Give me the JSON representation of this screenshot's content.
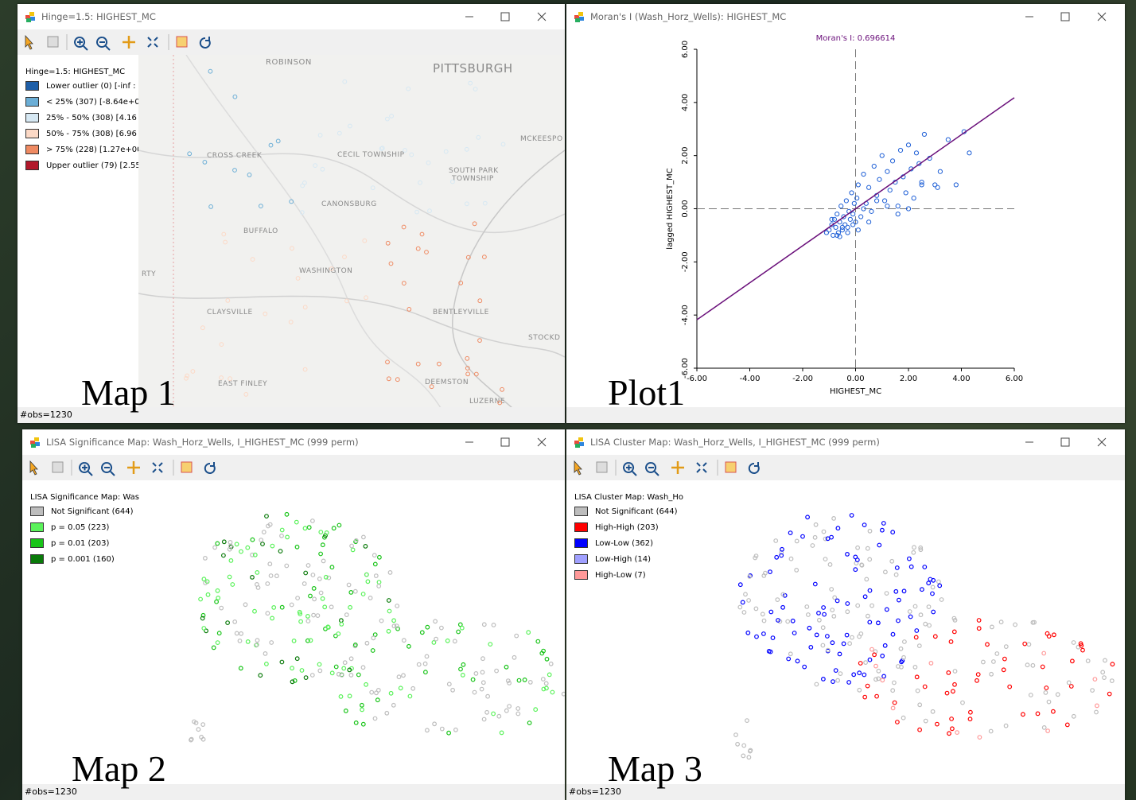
{
  "windows": [
    {
      "title": "Hinge=1.5: HIGHEST_MC",
      "legend": {
        "title": "Hinge=1.5: HIGHEST_MC",
        "items": [
          {
            "label": "Lower outlier (0)  [-inf :",
            "color": "#1f5fa8"
          },
          {
            "label": "< 25% (307)  [-8.64e+0",
            "color": "#6baed6"
          },
          {
            "label": "25% - 50% (308)  [4.16",
            "color": "#d6e8f3"
          },
          {
            "label": "50% - 75% (308)  [6.96",
            "color": "#fcd9c6"
          },
          {
            "label": "> 75% (228)  [1.27e+00",
            "color": "#ef8a62"
          },
          {
            "label": "Upper outlier (79)  [2.55",
            "color": "#b2182b"
          }
        ]
      },
      "map_labels": [
        "ROBINSON",
        "PITTSBURGH",
        "MCKEESPO",
        "CROSS CREEK",
        "CECIL TOWNSHIP",
        "SOUTH PARK",
        "TOWNSHIP",
        "CANONSBURG",
        "BUFFALO",
        "WASHINGTON",
        "RTY",
        "CLAYSVILLE",
        "BENTLEYVILLE",
        "STOCKD",
        "EAST FINLEY",
        "DEEMSTON",
        "LUZERNE"
      ],
      "status": "#obs=1230",
      "caption": "Map 1"
    },
    {
      "title": "Moran's I (Wash_Horz_Wells): HIGHEST_MC",
      "plot": {
        "type": "scatter",
        "title": "Moran's I: 0.696614",
        "slope": 0.696614,
        "color": "#1e5fd6",
        "line_color": "#6a0f7a",
        "x_label": "HIGHEST_MC",
        "y_label": "lagged HIGHEST_MC",
        "xlim": [
          -6,
          6
        ],
        "ylim": [
          -6,
          6
        ],
        "xticks": [
          {
            "value": -6,
            "label": "-6.00"
          },
          {
            "value": -4,
            "label": "-4.00"
          },
          {
            "value": -2,
            "label": "-2.00"
          },
          {
            "value": 0,
            "label": "0.00"
          },
          {
            "value": 2,
            "label": "2.00"
          },
          {
            "value": 4,
            "label": "4.00"
          },
          {
            "value": 6,
            "label": "6.00"
          }
        ],
        "yticks": [
          {
            "value": -6,
            "label": "-6.00"
          },
          {
            "value": -4,
            "label": "-4.00"
          },
          {
            "value": -2,
            "label": "-2.00"
          },
          {
            "value": 0,
            "label": "0.00"
          },
          {
            "value": 2,
            "label": "2.00"
          },
          {
            "value": 4,
            "label": "4.00"
          },
          {
            "value": 6,
            "label": "6.00"
          }
        ],
        "x": [
          -1.1,
          -1.0,
          -0.9,
          -0.85,
          -0.8,
          -0.75,
          -0.7,
          -0.65,
          -0.6,
          -0.55,
          -0.5,
          -0.45,
          -0.4,
          -0.35,
          -0.3,
          -0.25,
          -0.2,
          -0.15,
          -0.1,
          -0.05,
          0,
          0.05,
          0.1,
          0.2,
          0.3,
          0.4,
          0.5,
          0.6,
          0.7,
          0.8,
          0.9,
          1.0,
          1.1,
          1.2,
          1.3,
          1.4,
          1.5,
          1.6,
          1.7,
          1.8,
          1.9,
          2.0,
          2.1,
          2.2,
          2.3,
          2.4,
          2.5,
          2.6,
          2.8,
          3.0,
          3.2,
          3.5,
          3.8,
          4.1,
          4.3,
          -0.9,
          -0.7,
          -0.5,
          -0.3,
          -0.1,
          0.1,
          0.3,
          0.5,
          0.8,
          1.2,
          1.6,
          2.0,
          2.5,
          3.1,
          -0.6
        ],
        "y": [
          -0.9,
          -0.8,
          -0.6,
          -1.0,
          -0.4,
          -0.7,
          -0.2,
          -0.9,
          -0.5,
          0.1,
          -0.8,
          -0.3,
          -0.6,
          0.3,
          -0.7,
          -0.1,
          -0.4,
          0.6,
          -0.2,
          0.2,
          -0.5,
          0.4,
          0.9,
          -0.3,
          1.3,
          0.2,
          0.8,
          -0.1,
          1.6,
          0.5,
          1.1,
          2.0,
          0.3,
          1.4,
          0.7,
          1.8,
          1.0,
          0.1,
          2.2,
          1.2,
          0.6,
          2.4,
          1.5,
          0.4,
          2.1,
          1.7,
          0.9,
          2.8,
          1.9,
          0.9,
          1.4,
          2.6,
          0.9,
          2.9,
          2.1,
          -0.4,
          -1.0,
          -0.7,
          -0.9,
          -0.6,
          -0.8,
          0.0,
          -0.5,
          0.3,
          0.1,
          -0.2,
          0.0,
          1.0,
          0.8,
          -1.05
        ]
      },
      "caption": "Plot1"
    },
    {
      "title": "LISA Significance Map: Wash_Horz_Wells, I_HIGHEST_MC (999 perm)",
      "legend": {
        "title": "LISA Significance Map: Was",
        "items": [
          {
            "label": "Not Significant (644)",
            "color": "#bdbdbd"
          },
          {
            "label": "p = 0.05 (223)",
            "color": "#5af25a"
          },
          {
            "label": "p = 0.01 (203)",
            "color": "#18c418"
          },
          {
            "label": "p = 0.001 (160)",
            "color": "#0a7a0a"
          }
        ]
      },
      "status": "#obs=1230",
      "caption": "Map 2"
    },
    {
      "title": "LISA Cluster Map: Wash_Horz_Wells, I_HIGHEST_MC (999 perm)",
      "legend": {
        "title": "LISA Cluster Map: Wash_Ho",
        "items": [
          {
            "label": "Not Significant (644)",
            "color": "#bdbdbd"
          },
          {
            "label": "High-High (203)",
            "color": "#ff0000"
          },
          {
            "label": "Low-Low (362)",
            "color": "#0000ff"
          },
          {
            "label": "Low-High (14)",
            "color": "#a0a0ff"
          },
          {
            "label": "High-Low (7)",
            "color": "#ff9999"
          }
        ]
      },
      "status": "#obs=1230",
      "caption": "Map 3"
    }
  ]
}
